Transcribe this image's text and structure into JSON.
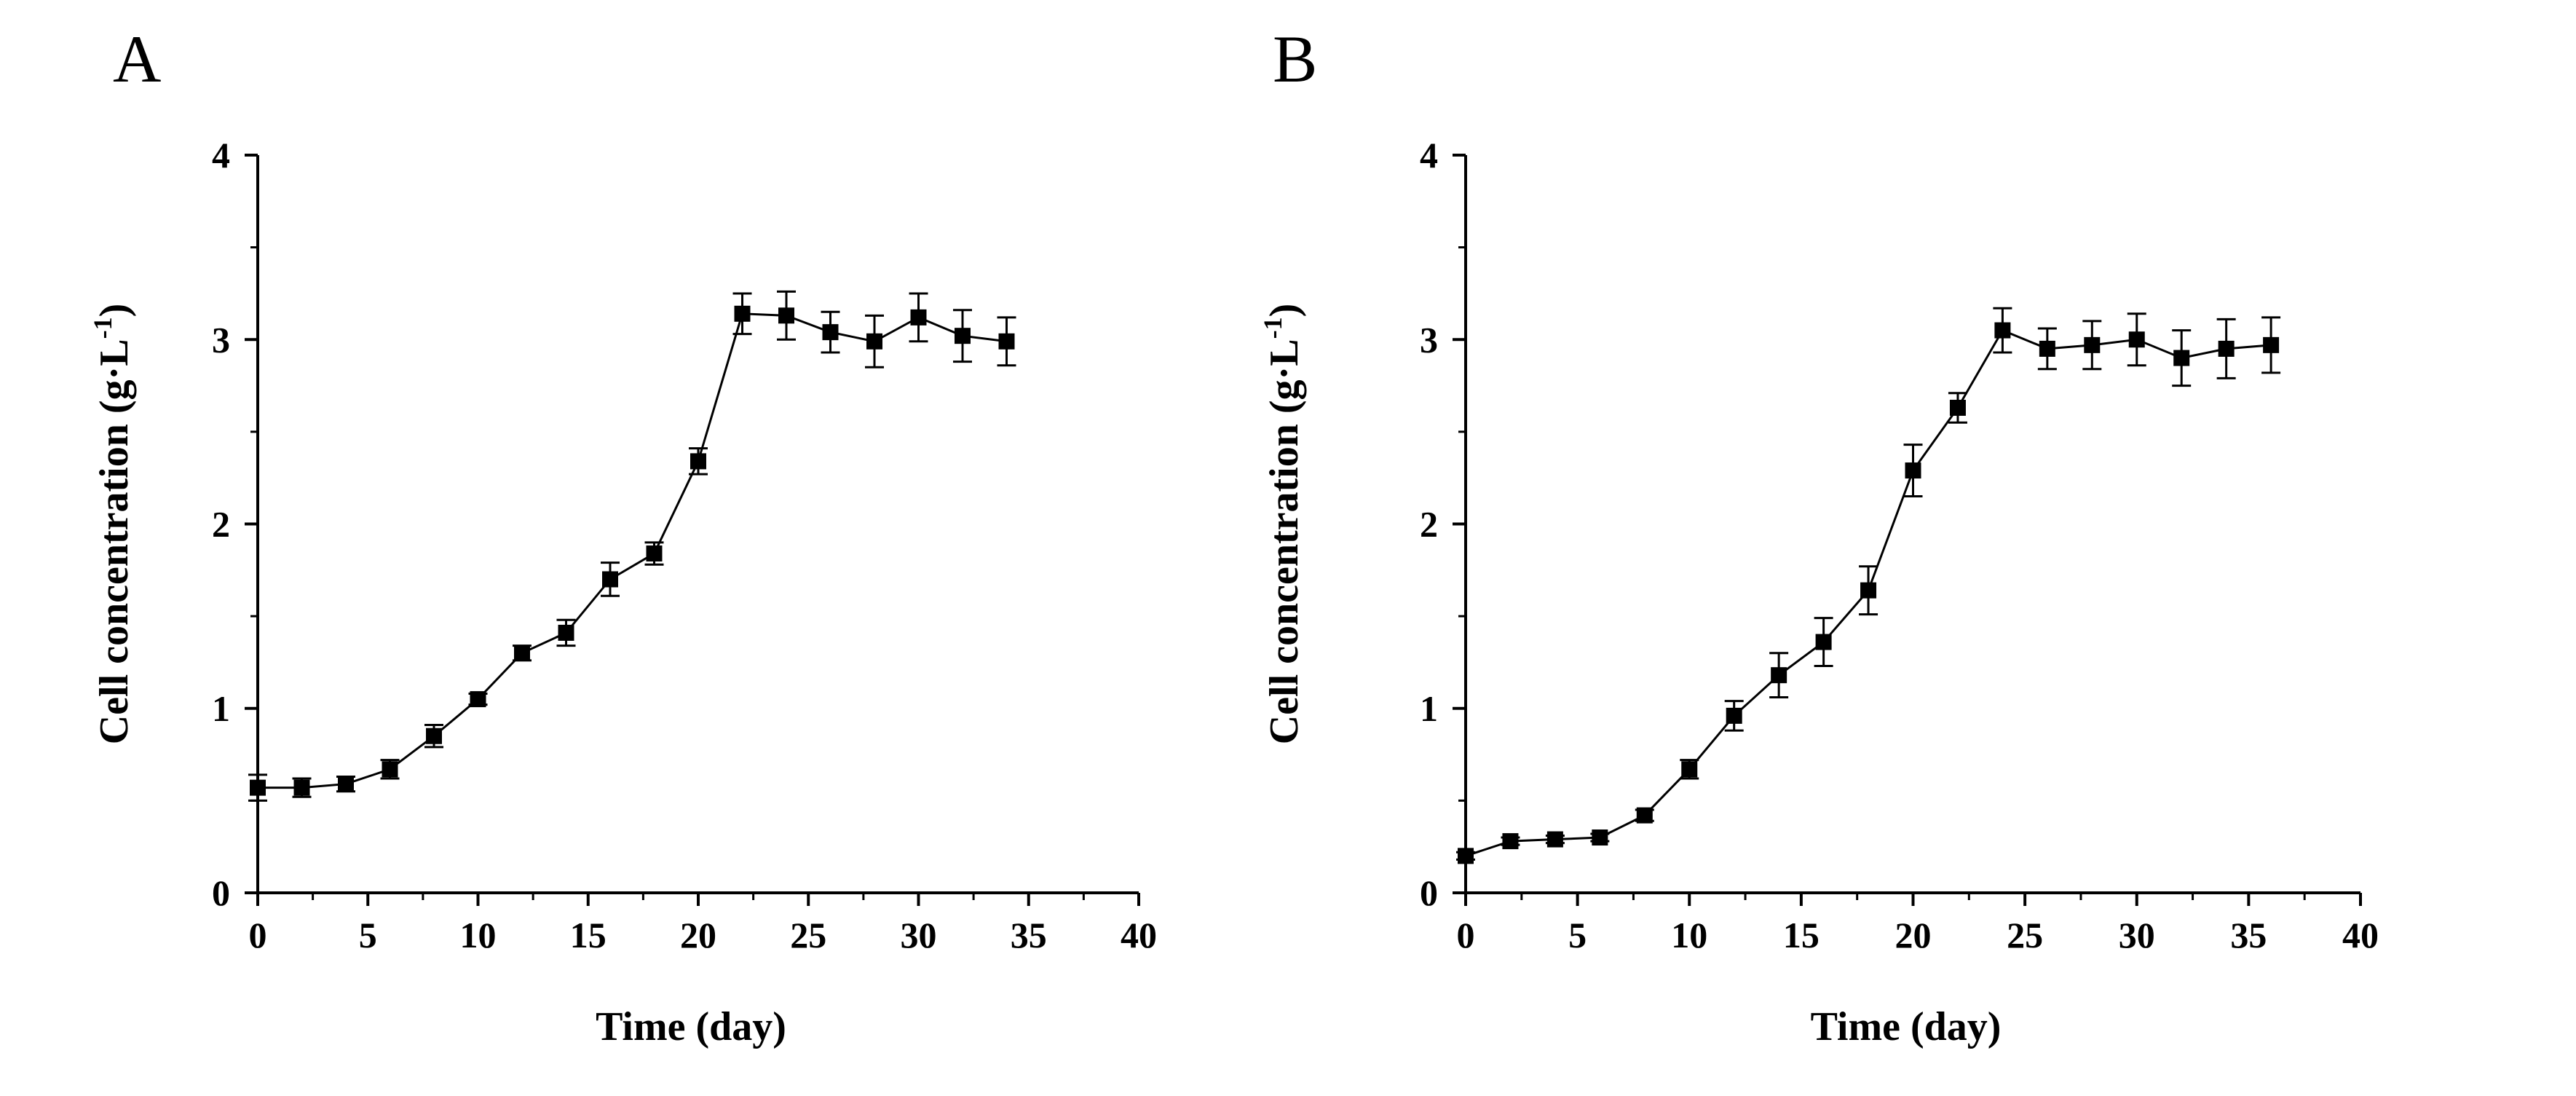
{
  "chart_data": [
    {
      "panel": "A",
      "type": "line",
      "title": "",
      "xlabel": "Time (day)",
      "ylabel_main": "Cell concentration (g·L",
      "ylabel_sup": "-1",
      "ylabel_close": ")",
      "xlim": [
        0,
        40
      ],
      "ylim": [
        0,
        4
      ],
      "xticks": [
        0,
        5,
        10,
        15,
        20,
        25,
        30,
        35,
        40
      ],
      "yticks": [
        0,
        1,
        2,
        3,
        4
      ],
      "grid": false,
      "marker": "square",
      "x": [
        0,
        2,
        4,
        6,
        8,
        10,
        12,
        14,
        16,
        18,
        20,
        22,
        24,
        26,
        28,
        30,
        32,
        34
      ],
      "y": [
        0.57,
        0.57,
        0.59,
        0.67,
        0.85,
        1.05,
        1.3,
        1.41,
        1.7,
        1.84,
        2.34,
        3.14,
        3.13,
        3.04,
        2.99,
        3.12,
        3.02,
        2.99
      ],
      "err": [
        0.07,
        0.05,
        0.04,
        0.05,
        0.06,
        0.03,
        0.04,
        0.07,
        0.09,
        0.06,
        0.07,
        0.11,
        0.13,
        0.11,
        0.14,
        0.13,
        0.14,
        0.13
      ]
    },
    {
      "panel": "B",
      "type": "line",
      "title": "",
      "xlabel": "Time (day)",
      "ylabel_main": "Cell concentration (g·L",
      "ylabel_sup": "-1",
      "ylabel_close": ")",
      "xlim": [
        0,
        40
      ],
      "ylim": [
        0,
        4
      ],
      "xticks": [
        0,
        5,
        10,
        15,
        20,
        25,
        30,
        35,
        40
      ],
      "yticks": [
        0,
        1,
        2,
        3,
        4
      ],
      "grid": false,
      "marker": "square",
      "x": [
        0,
        2,
        4,
        6,
        8,
        10,
        12,
        14,
        16,
        18,
        20,
        22,
        24,
        26,
        28,
        30,
        32,
        34,
        36
      ],
      "y": [
        0.2,
        0.28,
        0.29,
        0.3,
        0.42,
        0.67,
        0.96,
        1.18,
        1.36,
        1.64,
        2.29,
        2.63,
        3.05,
        2.95,
        2.97,
        3.0,
        2.9,
        2.95,
        2.97
      ],
      "err": [
        0.02,
        0.02,
        0.02,
        0.02,
        0.03,
        0.05,
        0.08,
        0.12,
        0.13,
        0.13,
        0.14,
        0.08,
        0.12,
        0.11,
        0.13,
        0.14,
        0.15,
        0.16,
        0.15
      ]
    }
  ]
}
